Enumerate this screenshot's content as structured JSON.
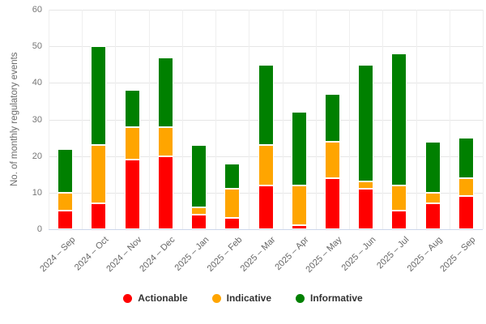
{
  "chart_data": {
    "type": "bar",
    "stacked": true,
    "title": "",
    "xlabel": "",
    "ylabel": "No. of monthly regulatory events",
    "ylim": [
      0,
      60
    ],
    "yticks": [
      0,
      10,
      20,
      30,
      40,
      50,
      60
    ],
    "grid": "horizontal gridlines at each ytick, faint vertical lines at category boundaries",
    "legend_position": "bottom-center",
    "categories": [
      "2024 – Sep",
      "2024 – Oct",
      "2024 – Nov",
      "2024 – Dec",
      "2025 – Jan",
      "2025 – Feb",
      "2025 – Mar",
      "2025 – Apr",
      "2025 – May",
      "2025 – Jun",
      "2025 – Jul",
      "2025 – Aug",
      "2025 – Sep"
    ],
    "series": [
      {
        "name": "Actionable",
        "color": "#ff0000",
        "values": [
          5,
          7,
          19,
          20,
          4,
          3,
          12,
          1,
          14,
          11,
          5,
          7,
          9
        ]
      },
      {
        "name": "Indicative",
        "color": "#ffa500",
        "values": [
          5,
          16,
          9,
          8,
          2,
          8,
          11,
          11,
          10,
          2,
          7,
          3,
          5
        ]
      },
      {
        "name": "Informative",
        "color": "#008000",
        "values": [
          12,
          27,
          10,
          19,
          17,
          7,
          22,
          20,
          13,
          32,
          36,
          14,
          11
        ]
      }
    ],
    "totals": [
      22,
      50,
      38,
      47,
      23,
      18,
      45,
      32,
      37,
      45,
      48,
      24,
      25
    ]
  }
}
